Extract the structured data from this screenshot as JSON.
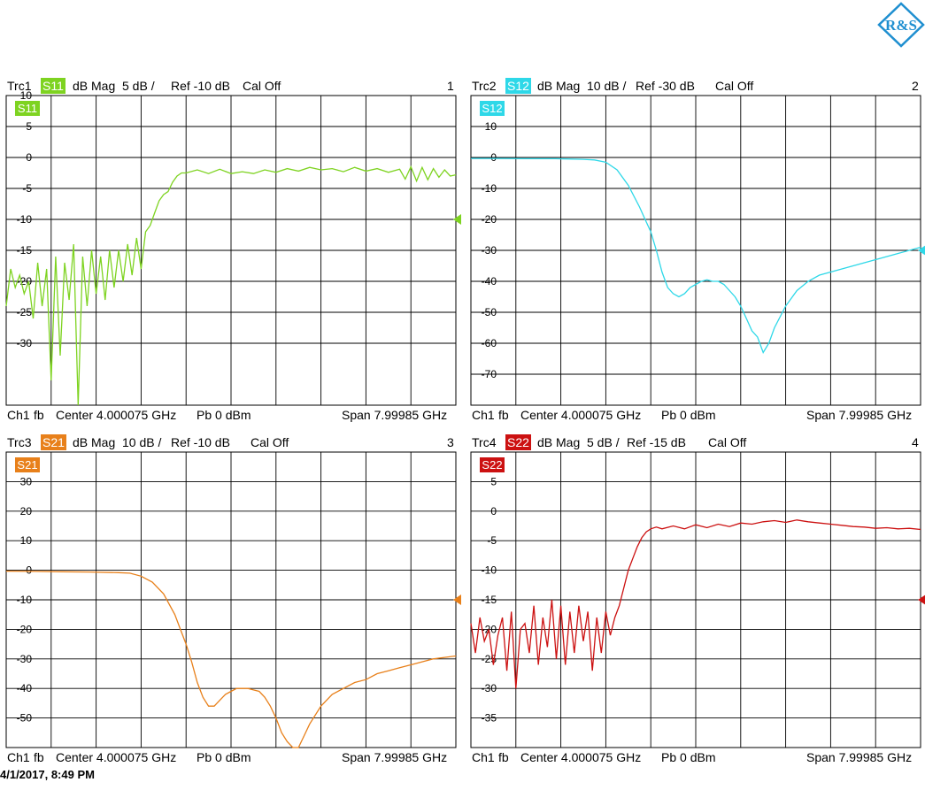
{
  "logo": {
    "icon": "rohde-schwarz-logo",
    "text": "R&S",
    "color": "#1f8fd0"
  },
  "timestamp": "4/1/2017, 8:49 PM",
  "chart_data": [
    {
      "type": "line",
      "trace": "Trc1",
      "param": "S11",
      "format": "dB Mag",
      "scale": "5 dB /",
      "ref": "Ref -10 dB",
      "cal": "Cal Off",
      "window": "1",
      "color": "#7ed321",
      "ylim": [
        -40,
        10
      ],
      "yticks": [
        10,
        5,
        0,
        -5,
        -10,
        -15,
        -20,
        -25,
        -30
      ],
      "ref_value": -10,
      "footer": {
        "ch": "Ch1",
        "fb": "fb",
        "center": "Center 4.000075 GHz",
        "pb": "Pb  0 dBm",
        "span": "Span  7.99985 GHz"
      },
      "xlim": [
        0.00015,
        8.0
      ],
      "x_unit": "GHz",
      "series": [
        {
          "x": [
            0.0,
            0.08,
            0.16,
            0.24,
            0.32,
            0.4,
            0.48,
            0.56,
            0.64,
            0.72,
            0.8,
            0.88,
            0.96,
            1.04,
            1.12,
            1.2,
            1.28,
            1.36,
            1.44,
            1.52,
            1.6,
            1.68,
            1.76,
            1.84,
            1.92,
            2.0,
            2.08,
            2.16,
            2.24,
            2.32,
            2.4,
            2.48,
            2.56,
            2.64,
            2.72,
            2.8,
            2.88,
            2.96,
            3.04,
            3.12,
            3.2,
            3.4,
            3.6,
            3.8,
            4.0,
            4.2,
            4.4,
            4.6,
            4.8,
            5.0,
            5.2,
            5.4,
            5.6,
            5.8,
            6.0,
            6.2,
            6.4,
            6.6,
            6.8,
            7.0,
            7.1,
            7.2,
            7.3,
            7.4,
            7.5,
            7.6,
            7.7,
            7.8,
            7.9,
            8.0
          ],
          "y": [
            -24,
            -18,
            -21,
            -19,
            -22,
            -20,
            -26,
            -17,
            -24,
            -18,
            -36,
            -16,
            -32,
            -17,
            -23,
            -14,
            -40,
            -16,
            -24,
            -15,
            -22,
            -16,
            -23,
            -15,
            -21,
            -15,
            -20,
            -14,
            -19,
            -13,
            -18,
            -12,
            -11,
            -9,
            -7,
            -6,
            -5.5,
            -4,
            -3,
            -2.5,
            -2.5,
            -2,
            -2.6,
            -1.9,
            -2.6,
            -2.3,
            -2.6,
            -2.0,
            -2.4,
            -1.8,
            -2.2,
            -1.6,
            -2.0,
            -1.8,
            -2.3,
            -1.6,
            -2.2,
            -1.8,
            -2.4,
            -1.9,
            -3.5,
            -1.5,
            -3.8,
            -1.6,
            -3.6,
            -1.8,
            -3.2,
            -2.0,
            -3.0,
            -2.8
          ]
        }
      ]
    },
    {
      "type": "line",
      "trace": "Trc2",
      "param": "S12",
      "format": "dB Mag",
      "scale": "10 dB /",
      "ref": "Ref -30 dB",
      "cal": "Cal Off",
      "window": "2",
      "color": "#2ed8e8",
      "ylim": [
        -80,
        20
      ],
      "yticks": [
        10,
        0,
        -10,
        -20,
        -30,
        -40,
        -50,
        -60,
        -70
      ],
      "ref_value": -30,
      "footer": {
        "ch": "Ch1",
        "fb": "fb",
        "center": "Center 4.000075 GHz",
        "pb": "Pb  0 dBm",
        "span": "Span  7.99985 GHz"
      },
      "xlim": [
        0.00015,
        8.0
      ],
      "x_unit": "GHz",
      "series": [
        {
          "x": [
            0.0,
            0.5,
            1.0,
            1.5,
            2.0,
            2.2,
            2.4,
            2.6,
            2.8,
            3.0,
            3.1,
            3.2,
            3.3,
            3.4,
            3.5,
            3.6,
            3.7,
            3.8,
            3.9,
            4.0,
            4.1,
            4.2,
            4.3,
            4.4,
            4.5,
            4.6,
            4.7,
            4.8,
            4.9,
            5.0,
            5.1,
            5.2,
            5.3,
            5.4,
            5.6,
            5.8,
            6.0,
            6.2,
            6.4,
            6.6,
            6.8,
            7.0,
            7.2,
            7.4,
            7.6,
            7.8,
            8.0
          ],
          "y": [
            -0.3,
            -0.3,
            -0.4,
            -0.4,
            -0.6,
            -0.8,
            -1.5,
            -4,
            -9,
            -16,
            -20,
            -24,
            -30,
            -37,
            -42,
            -44,
            -45,
            -44,
            -42,
            -41,
            -40,
            -39.5,
            -40,
            -40,
            -41,
            -43,
            -45,
            -48,
            -52,
            -56,
            -58,
            -63,
            -60,
            -55,
            -48,
            -43,
            -40,
            -38,
            -37,
            -36,
            -35,
            -34,
            -33,
            -32,
            -31,
            -30,
            -29
          ]
        }
      ]
    },
    {
      "type": "line",
      "trace": "Trc3",
      "param": "S21",
      "format": "dB Mag",
      "scale": "10 dB /",
      "ref": "Ref -10 dB",
      "cal": "Cal Off",
      "window": "3",
      "color": "#e8801a",
      "ylim": [
        -60,
        40
      ],
      "yticks": [
        30,
        20,
        10,
        0,
        -10,
        -20,
        -30,
        -40,
        -50
      ],
      "ref_value": -10,
      "footer": {
        "ch": "Ch1",
        "fb": "fb",
        "center": "Center 4.000075 GHz",
        "pb": "Pb  0 dBm",
        "span": "Span  7.99985 GHz"
      },
      "xlim": [
        0.00015,
        8.0
      ],
      "x_unit": "GHz",
      "series": [
        {
          "x": [
            0.0,
            0.5,
            1.0,
            1.5,
            2.0,
            2.2,
            2.4,
            2.6,
            2.8,
            3.0,
            3.1,
            3.2,
            3.3,
            3.4,
            3.5,
            3.6,
            3.7,
            3.8,
            3.9,
            4.0,
            4.1,
            4.2,
            4.3,
            4.4,
            4.5,
            4.6,
            4.7,
            4.8,
            4.9,
            5.0,
            5.1,
            5.2,
            5.3,
            5.4,
            5.6,
            5.8,
            6.0,
            6.2,
            6.4,
            6.6,
            6.8,
            7.0,
            7.2,
            7.4,
            7.6,
            7.8,
            8.0
          ],
          "y": [
            -0.3,
            -0.4,
            -0.5,
            -0.6,
            -0.8,
            -1,
            -2,
            -4,
            -8,
            -15,
            -20,
            -25,
            -31,
            -38,
            -43,
            -46,
            -46,
            -44,
            -42,
            -41,
            -40,
            -40,
            -40,
            -40.5,
            -41,
            -43,
            -46,
            -50,
            -55,
            -58,
            -62,
            -62,
            -56,
            -52,
            -46,
            -42,
            -40,
            -38,
            -37,
            -35,
            -34,
            -33,
            -32,
            -31,
            -30,
            -29.5,
            -29
          ]
        }
      ]
    },
    {
      "type": "line",
      "trace": "Trc4",
      "param": "S22",
      "format": "dB Mag",
      "scale": "5 dB /",
      "ref": "Ref -15 dB",
      "cal": "Cal Off",
      "window": "4",
      "color": "#cc1111",
      "ylim": [
        -40,
        10
      ],
      "yticks": [
        5,
        0,
        -5,
        -10,
        -15,
        -20,
        -25,
        -30,
        -35
      ],
      "ref_value": -15,
      "footer": {
        "ch": "Ch1",
        "fb": "fb",
        "center": "Center 4.000075 GHz",
        "pb": "Pb  0 dBm",
        "span": "Span  7.99985 GHz"
      },
      "xlim": [
        0.00015,
        8.0
      ],
      "x_unit": "GHz",
      "series": [
        {
          "x": [
            0.0,
            0.08,
            0.16,
            0.24,
            0.32,
            0.4,
            0.48,
            0.56,
            0.64,
            0.72,
            0.8,
            0.88,
            0.96,
            1.04,
            1.12,
            1.2,
            1.28,
            1.36,
            1.44,
            1.52,
            1.6,
            1.68,
            1.76,
            1.84,
            1.92,
            2.0,
            2.08,
            2.16,
            2.24,
            2.32,
            2.4,
            2.48,
            2.56,
            2.64,
            2.72,
            2.8,
            2.88,
            2.96,
            3.04,
            3.12,
            3.2,
            3.3,
            3.4,
            3.6,
            3.8,
            4.0,
            4.2,
            4.4,
            4.6,
            4.8,
            5.0,
            5.2,
            5.4,
            5.6,
            5.8,
            6.0,
            6.2,
            6.4,
            6.6,
            6.8,
            7.0,
            7.2,
            7.4,
            7.6,
            7.8,
            8.0
          ],
          "y": [
            -19,
            -24,
            -18,
            -22,
            -20,
            -26,
            -21,
            -18,
            -27,
            -17,
            -30,
            -20,
            -19,
            -24,
            -16,
            -26,
            -18,
            -23,
            -15,
            -25,
            -16,
            -26,
            -17,
            -24,
            -16,
            -22,
            -17,
            -27,
            -18,
            -24,
            -17,
            -21,
            -18,
            -16,
            -13,
            -10,
            -8,
            -6,
            -4.5,
            -3.5,
            -3,
            -2.7,
            -3,
            -2.5,
            -3,
            -2.3,
            -2.8,
            -2.2,
            -2.6,
            -2.0,
            -2.2,
            -1.8,
            -1.6,
            -1.9,
            -1.5,
            -1.8,
            -2.0,
            -2.2,
            -2.4,
            -2.6,
            -2.7,
            -2.9,
            -2.8,
            -3.0,
            -2.9,
            -3.1
          ]
        }
      ]
    }
  ]
}
